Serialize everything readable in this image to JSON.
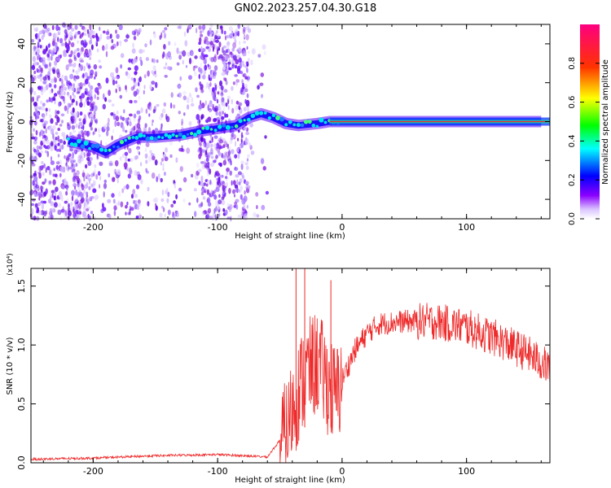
{
  "title": "GN02.2023.257.04.30.G18",
  "colors": {
    "snr_line": "#ee2a2a",
    "ridge": "#e83030",
    "scatter": "#8a2be2"
  },
  "chart_data": [
    {
      "type": "heatmap",
      "xlabel": "Height of straight line (km)",
      "ylabel": "Frequency (Hz)",
      "xlim": [
        -250,
        167
      ],
      "ylim": [
        -50,
        50
      ],
      "xticks": [
        -200,
        -100,
        0,
        100
      ],
      "xtick_labels": [
        "-200",
        "-100",
        "0",
        "100"
      ],
      "yticks": [
        -40,
        -20,
        0,
        20,
        40
      ],
      "ytick_labels": [
        "-40",
        "-20",
        "0",
        "20",
        "40"
      ],
      "colorbar": {
        "label": "Normalized spectral amplitude",
        "range": [
          0,
          1
        ],
        "ticks": [
          0.0,
          0.2,
          0.4,
          0.6,
          0.8
        ],
        "tick_labels": [
          "0.0",
          "0.2",
          "0.4",
          "0.6",
          "0.8"
        ]
      },
      "ridge": {
        "description_points": [
          [
            -220,
            -10
          ],
          [
            -200,
            -13
          ],
          [
            -190,
            -16
          ],
          [
            -180,
            -12
          ],
          [
            -165,
            -8
          ],
          [
            -150,
            -8
          ],
          [
            -130,
            -7
          ],
          [
            -115,
            -5
          ],
          [
            -105,
            -4
          ],
          [
            -95,
            -3
          ],
          [
            -85,
            -2
          ],
          [
            -75,
            2
          ],
          [
            -65,
            4
          ],
          [
            -55,
            2
          ],
          [
            -45,
            -1
          ],
          [
            -35,
            -2
          ],
          [
            -20,
            -1
          ],
          [
            -10,
            0
          ],
          [
            0,
            0
          ],
          [
            50,
            0
          ],
          [
            100,
            0
          ],
          [
            160,
            0
          ]
        ]
      }
    },
    {
      "type": "line",
      "xlabel": "Height of straight line (km)",
      "ylabel": "SNR (10 * v/v)",
      "scale_label": "(x10⁴)",
      "xlim": [
        -250,
        167
      ],
      "ylim": [
        0,
        1.65
      ],
      "xticks": [
        -200,
        -100,
        0,
        100
      ],
      "xtick_labels": [
        "-200",
        "-100",
        "0",
        "100"
      ],
      "yticks": [
        0.0,
        0.5,
        1.0,
        1.5
      ],
      "ytick_labels": [
        "0.0",
        "0.5",
        "1.0",
        "1.5"
      ],
      "series": [
        {
          "x": [
            -250,
            -200,
            -150,
            -100,
            -60,
            -45,
            -40,
            -30,
            -20,
            -10,
            -5,
            0,
            10,
            20,
            30,
            50,
            75,
            100,
            125,
            150,
            167
          ],
          "y": [
            0.02,
            0.03,
            0.05,
            0.06,
            0.04,
            0.25,
            0.45,
            0.75,
            0.85,
            0.65,
            0.55,
            0.7,
            0.95,
            1.1,
            1.18,
            1.2,
            1.2,
            1.15,
            1.05,
            0.92,
            0.8
          ]
        }
      ]
    }
  ]
}
